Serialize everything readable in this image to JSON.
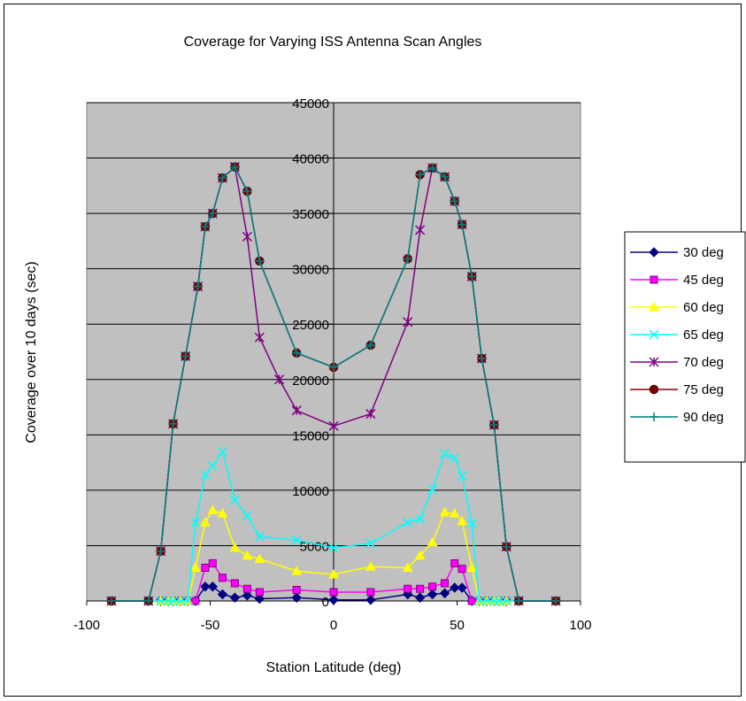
{
  "chart_data": {
    "type": "scatter",
    "title": "Coverage for Varying ISS Antenna Scan Angles",
    "xlabel": "Station Latitude (deg)",
    "ylabel": "Coverage over 10 days (sec)",
    "xlim": [
      -100,
      100
    ],
    "ylim": [
      0,
      45000
    ],
    "xticks": [
      -100,
      -50,
      0,
      50,
      100
    ],
    "yticks": [
      0,
      5000,
      10000,
      15000,
      20000,
      25000,
      30000,
      35000,
      40000,
      45000
    ],
    "grid": "horizontal",
    "plot_background": "#c0c0c0",
    "legend_position": "right",
    "series": [
      {
        "name": "30 deg",
        "color": "#000080",
        "marker": "diamond",
        "x": [
          -90,
          -75,
          -70,
          -67,
          -65,
          -62,
          -59,
          -56,
          -52,
          -49,
          -45,
          -40,
          -35,
          -30,
          -15,
          0,
          15,
          30,
          35,
          40,
          45,
          49,
          52,
          56,
          59,
          62,
          65,
          67,
          70,
          75,
          90
        ],
        "y": [
          0,
          0,
          0,
          0,
          0,
          0,
          0,
          0,
          1300,
          1300,
          600,
          300,
          500,
          200,
          300,
          100,
          100,
          600,
          300,
          600,
          700,
          1200,
          1200,
          0,
          0,
          0,
          0,
          0,
          0,
          0,
          0
        ]
      },
      {
        "name": "45 deg",
        "color": "#ff00ff",
        "marker": "square",
        "x": [
          -90,
          -75,
          -70,
          -67,
          -65,
          -62,
          -59,
          -56,
          -52,
          -49,
          -45,
          -40,
          -35,
          -30,
          -15,
          0,
          15,
          30,
          35,
          40,
          45,
          49,
          52,
          56,
          59,
          62,
          65,
          67,
          70,
          75,
          90
        ],
        "y": [
          0,
          0,
          0,
          0,
          0,
          0,
          0,
          0,
          3000,
          3400,
          2100,
          1600,
          1100,
          800,
          1000,
          800,
          800,
          1100,
          1100,
          1300,
          1600,
          3400,
          2900,
          0,
          0,
          0,
          0,
          0,
          0,
          0,
          0
        ]
      },
      {
        "name": "60 deg",
        "color": "#ffff00",
        "marker": "triangle",
        "x": [
          -90,
          -75,
          -70,
          -67,
          -65,
          -62,
          -59,
          -56,
          -52,
          -49,
          -45,
          -40,
          -35,
          -30,
          -15,
          0,
          15,
          30,
          35,
          40,
          45,
          49,
          52,
          56,
          59,
          62,
          65,
          67,
          70,
          75,
          90
        ],
        "y": [
          0,
          0,
          0,
          0,
          0,
          0,
          0,
          3000,
          7100,
          8200,
          7900,
          4800,
          4100,
          3800,
          2700,
          2400,
          3100,
          3000,
          4100,
          5300,
          8000,
          7900,
          7200,
          3000,
          0,
          0,
          0,
          0,
          0,
          0,
          0
        ]
      },
      {
        "name": "65 deg",
        "color": "#00ffff",
        "marker": "x",
        "x": [
          -90,
          -75,
          -70,
          -67,
          -65,
          -62,
          -59,
          -56,
          -52,
          -49,
          -45,
          -40,
          -35,
          -30,
          -15,
          0,
          15,
          30,
          35,
          40,
          45,
          49,
          52,
          56,
          59,
          62,
          65,
          67,
          70,
          75,
          90
        ],
        "y": [
          0,
          0,
          0,
          0,
          0,
          0,
          0,
          7100,
          11400,
          12200,
          13500,
          9100,
          7700,
          5800,
          5500,
          4800,
          5200,
          7100,
          7400,
          10100,
          13300,
          12900,
          11300,
          7000,
          0,
          0,
          0,
          0,
          0,
          0,
          0
        ]
      },
      {
        "name": "70 deg",
        "color": "#800080",
        "marker": "asterisk",
        "x": [
          -90,
          -75,
          -70,
          -65,
          -60,
          -55,
          -52,
          -49,
          -45,
          -40,
          -35,
          -30,
          -22,
          -15,
          0,
          15,
          30,
          35,
          40,
          45,
          49,
          52,
          56,
          60,
          65,
          70,
          75,
          90
        ],
        "y": [
          0,
          0,
          4500,
          16000,
          22100,
          28400,
          33800,
          35000,
          38200,
          39200,
          32900,
          23800,
          20000,
          17200,
          15800,
          16900,
          25200,
          33500,
          39100,
          38300,
          36100,
          34000,
          29300,
          21900,
          15900,
          4900,
          0,
          0
        ]
      },
      {
        "name": "75 deg",
        "color": "#800000",
        "marker": "circle",
        "x": [
          -90,
          -75,
          -70,
          -65,
          -60,
          -55,
          -52,
          -49,
          -45,
          -40,
          -35,
          -30,
          -15,
          0,
          15,
          30,
          35,
          40,
          45,
          49,
          52,
          56,
          60,
          65,
          70,
          75,
          90
        ],
        "y": [
          0,
          0,
          4500,
          16000,
          22100,
          28400,
          33800,
          35000,
          38200,
          39200,
          37000,
          30700,
          22400,
          21100,
          23100,
          30900,
          38500,
          39100,
          38300,
          36100,
          34000,
          29300,
          21900,
          15900,
          4900,
          0,
          0
        ]
      },
      {
        "name": "90 deg",
        "color": "#008080",
        "marker": "plus",
        "x": [
          -90,
          -75,
          -70,
          -65,
          -60,
          -55,
          -52,
          -49,
          -45,
          -40,
          -35,
          -30,
          -15,
          0,
          15,
          30,
          35,
          40,
          45,
          49,
          52,
          56,
          60,
          65,
          70,
          75,
          90
        ],
        "y": [
          0,
          0,
          4500,
          16000,
          22100,
          28400,
          33800,
          35000,
          38200,
          39200,
          37000,
          30700,
          22400,
          21100,
          23100,
          30900,
          38500,
          39100,
          38300,
          36100,
          34000,
          29300,
          21900,
          15900,
          4900,
          0,
          0
        ]
      }
    ]
  }
}
